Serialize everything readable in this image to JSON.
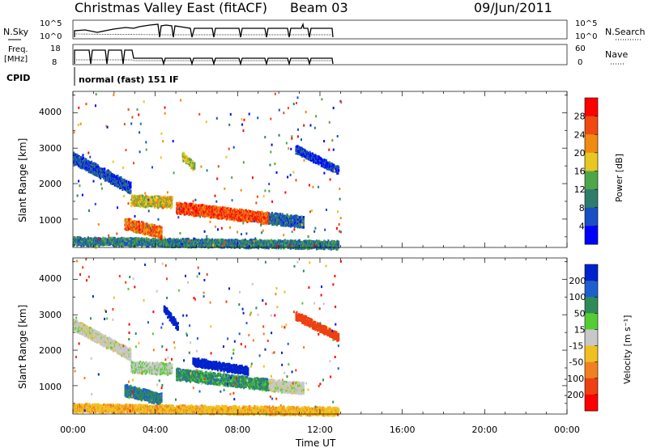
{
  "header": {
    "title": "Christmas Valley East (fitACF)",
    "beam": "Beam 03",
    "date": "09/Jun/2011"
  },
  "nsky_panel": {
    "left_label": "N.Sky",
    "left_ticks": [
      "10^5",
      "10^0"
    ],
    "right_ticks": [
      "10^5",
      "10^0"
    ],
    "right_label": "N.Search"
  },
  "freq_panel": {
    "left_label_line1": "Freq.",
    "left_label_line2": "[MHz]",
    "left_ticks": [
      "18",
      "8"
    ],
    "right_ticks": [
      "60",
      "0"
    ],
    "right_label": "Nave"
  },
  "cpid": {
    "label": "CPID",
    "mode": "normal (fast) 151 IF"
  },
  "colors": {
    "power_scale": [
      "#0000ff",
      "#1a4ec4",
      "#2d7d6a",
      "#4fa64a",
      "#e8c820",
      "#f08a10",
      "#ef4a10",
      "#ff0000"
    ],
    "velocity_scale": [
      "#0022cc",
      "#1e5fd0",
      "#2e8b57",
      "#55cc33",
      "#c8c8c8",
      "#f0c020",
      "#f08020",
      "#ee4010",
      "#ff0000"
    ]
  },
  "chart_data": [
    {
      "type": "heatmap",
      "name": "power",
      "xlabel": "",
      "ylabel": "Slant Range [km]",
      "x_unit": "hours UT",
      "xlim": [
        0,
        24
      ],
      "ylim": [
        200,
        4600
      ],
      "yticks": [
        "1000",
        "2000",
        "3000",
        "4000"
      ],
      "colorbar_label": "Power [dB]",
      "colorbar_ticks": [
        "4",
        "8",
        "12",
        "16",
        "20",
        "24",
        "28"
      ],
      "data_extent_hours": [
        0,
        13
      ],
      "features": [
        {
          "label": "band",
          "start_hour": 0.0,
          "end_hour": 2.8,
          "start_range_km": 2750,
          "end_range_km": 1900,
          "level_db": 6
        },
        {
          "label": "band",
          "start_hour": 2.8,
          "end_hour": 4.8,
          "start_range_km": 1550,
          "end_range_km": 1500,
          "level_db": 18
        },
        {
          "label": "band",
          "start_hour": 2.5,
          "end_hour": 4.3,
          "start_range_km": 900,
          "end_range_km": 650,
          "level_db": 24
        },
        {
          "label": "band",
          "start_hour": 5.0,
          "end_hour": 9.5,
          "start_range_km": 1350,
          "end_range_km": 1050,
          "level_db": 26
        },
        {
          "label": "band",
          "start_hour": 9.5,
          "end_hour": 11.2,
          "start_range_km": 1050,
          "end_range_km": 950,
          "level_db": 8
        },
        {
          "label": "patch",
          "start_hour": 5.3,
          "end_hour": 5.9,
          "start_range_km": 2800,
          "end_range_km": 2500,
          "level_db": 16
        },
        {
          "label": "patch",
          "start_hour": 10.8,
          "end_hour": 12.9,
          "start_range_km": 3000,
          "end_range_km": 2400,
          "level_db": 4
        },
        {
          "label": "near_range",
          "start_hour": 0.0,
          "end_hour": 12.9,
          "start_range_km": 400,
          "end_range_km": 300,
          "level_db": 10
        }
      ]
    },
    {
      "type": "heatmap",
      "name": "velocity",
      "xlabel": "Time UT",
      "ylabel": "Slant Range [km]",
      "x_unit": "hours UT",
      "xlim": [
        0,
        24
      ],
      "ylim": [
        200,
        4600
      ],
      "xticks": [
        "00:00",
        "04:00",
        "08:00",
        "12:00",
        "16:00",
        "20:00",
        "00:00"
      ],
      "yticks": [
        "1000",
        "2000",
        "3000",
        "4000"
      ],
      "colorbar_label": "Velocity [m s⁻¹]",
      "colorbar_ticks": [
        "200",
        "100",
        "50",
        "15",
        "-15",
        "-50",
        "-100",
        "-200"
      ],
      "data_extent_hours": [
        0,
        13
      ],
      "features": [
        {
          "label": "band",
          "start_hour": 0.0,
          "end_hour": 2.8,
          "start_range_km": 2750,
          "end_range_km": 1900,
          "level_ms": 0
        },
        {
          "label": "band",
          "start_hour": 2.8,
          "end_hour": 4.8,
          "start_range_km": 1550,
          "end_range_km": 1500,
          "level_ms": 10
        },
        {
          "label": "band",
          "start_hour": 2.5,
          "end_hour": 4.3,
          "start_range_km": 900,
          "end_range_km": 650,
          "level_ms": 70
        },
        {
          "label": "band",
          "start_hour": 5.0,
          "end_hour": 9.5,
          "start_range_km": 1350,
          "end_range_km": 1050,
          "level_ms": 60
        },
        {
          "label": "band",
          "start_hour": 9.5,
          "end_hour": 11.2,
          "start_range_km": 1050,
          "end_range_km": 950,
          "level_ms": 0
        },
        {
          "label": "patch",
          "start_hour": 4.4,
          "end_hour": 5.1,
          "start_range_km": 3200,
          "end_range_km": 2700,
          "level_ms": 220
        },
        {
          "label": "patch",
          "start_hour": 5.8,
          "end_hour": 8.5,
          "start_range_km": 1700,
          "end_range_km": 1450,
          "level_ms": 220
        },
        {
          "label": "patch",
          "start_hour": 10.8,
          "end_hour": 12.9,
          "start_range_km": 3000,
          "end_range_km": 2400,
          "level_ms": -120
        },
        {
          "label": "near_range",
          "start_hour": 0.0,
          "end_hour": 12.9,
          "start_range_km": 400,
          "end_range_km": 300,
          "level_ms": -40
        }
      ]
    }
  ]
}
